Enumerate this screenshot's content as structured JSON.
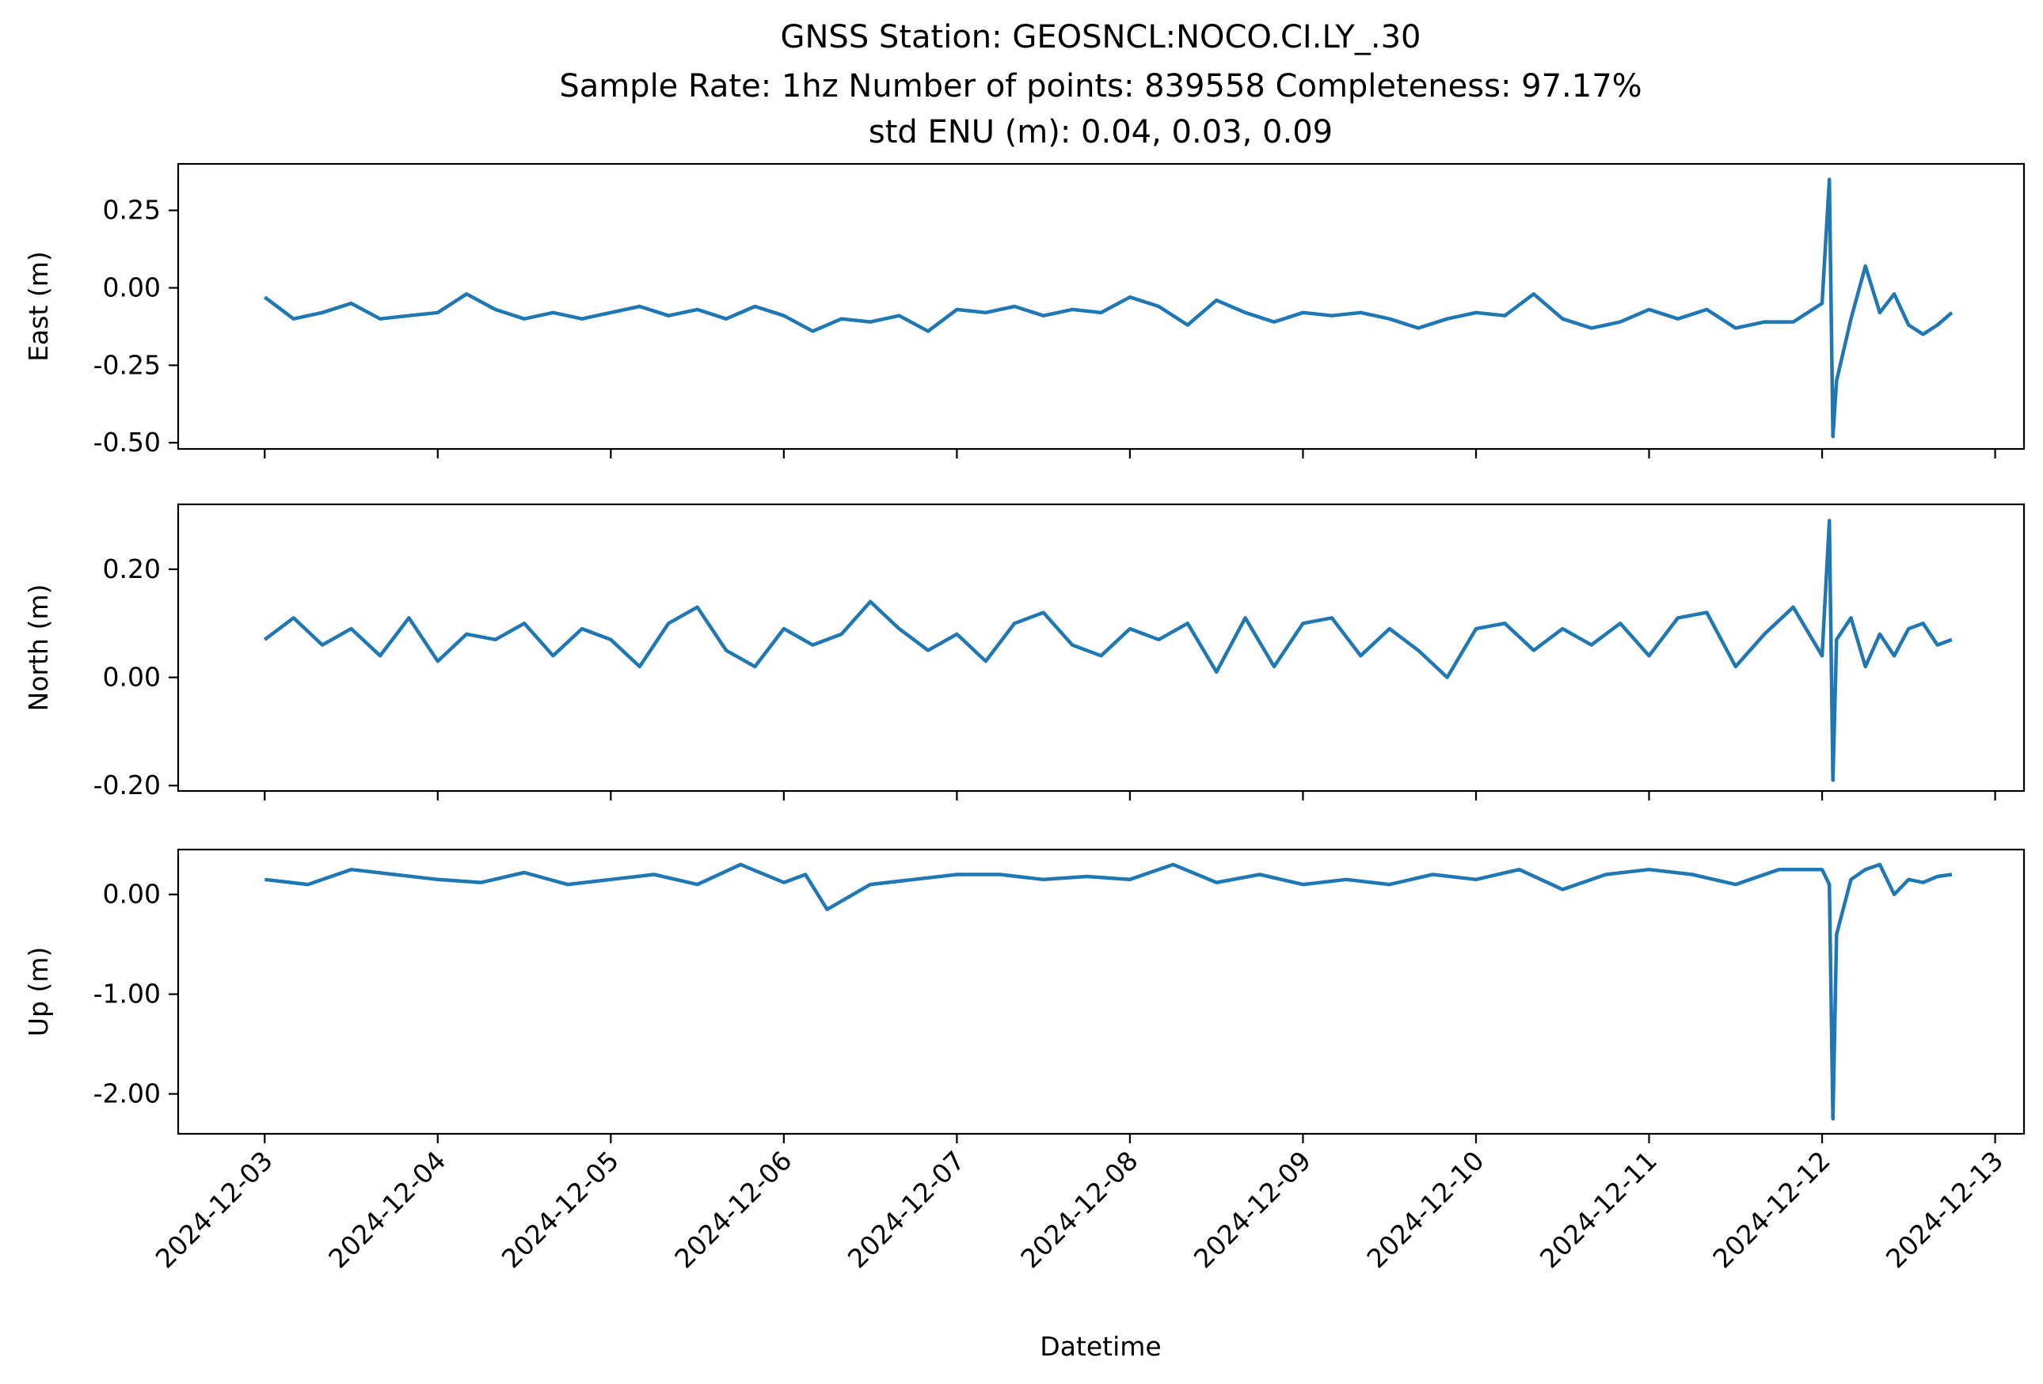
{
  "chart_data": {
    "type": "line",
    "title_lines": [
      "GNSS Station: GEOSNCL:NOCO.CI.LY_.30",
      "Sample Rate: 1hz   Number of points: 839558    Completeness:  97.17%",
      "std ENU (m):  0.04, 0.03, 0.09"
    ],
    "xlabel": "Datetime",
    "x_ticks": [
      "2024-12-03",
      "2024-12-04",
      "2024-12-05",
      "2024-12-06",
      "2024-12-07",
      "2024-12-08",
      "2024-12-09",
      "2024-12-10",
      "2024-12-11",
      "2024-12-12",
      "2024-12-13"
    ],
    "xlim": [
      "2024-12-02T12:00",
      "2024-12-13T04:00"
    ],
    "line_color": "#1f77b4",
    "panels": [
      {
        "ylabel": "East (m)",
        "ylim": [
          -0.52,
          0.4
        ],
        "y_ticks": [
          0.25,
          0.0,
          -0.25,
          -0.5
        ],
        "y_tick_labels": [
          "0.25",
          "0.00",
          "-0.25",
          "-0.50"
        ],
        "series": {
          "x": [
            "2024-12-03T00:00",
            "2024-12-03T04:00",
            "2024-12-03T08:00",
            "2024-12-03T12:00",
            "2024-12-03T16:00",
            "2024-12-03T20:00",
            "2024-12-04T00:00",
            "2024-12-04T04:00",
            "2024-12-04T08:00",
            "2024-12-04T12:00",
            "2024-12-04T16:00",
            "2024-12-04T20:00",
            "2024-12-05T00:00",
            "2024-12-05T04:00",
            "2024-12-05T08:00",
            "2024-12-05T12:00",
            "2024-12-05T16:00",
            "2024-12-05T20:00",
            "2024-12-06T00:00",
            "2024-12-06T04:00",
            "2024-12-06T08:00",
            "2024-12-06T12:00",
            "2024-12-06T16:00",
            "2024-12-06T20:00",
            "2024-12-07T00:00",
            "2024-12-07T04:00",
            "2024-12-07T08:00",
            "2024-12-07T12:00",
            "2024-12-07T16:00",
            "2024-12-07T20:00",
            "2024-12-08T00:00",
            "2024-12-08T04:00",
            "2024-12-08T08:00",
            "2024-12-08T12:00",
            "2024-12-08T16:00",
            "2024-12-08T20:00",
            "2024-12-09T00:00",
            "2024-12-09T04:00",
            "2024-12-09T08:00",
            "2024-12-09T12:00",
            "2024-12-09T16:00",
            "2024-12-09T20:00",
            "2024-12-10T00:00",
            "2024-12-10T04:00",
            "2024-12-10T08:00",
            "2024-12-10T12:00",
            "2024-12-10T16:00",
            "2024-12-10T20:00",
            "2024-12-11T00:00",
            "2024-12-11T04:00",
            "2024-12-11T08:00",
            "2024-12-11T12:00",
            "2024-12-11T16:00",
            "2024-12-11T20:00",
            "2024-12-12T00:00",
            "2024-12-12T01:00",
            "2024-12-12T01:30",
            "2024-12-12T02:00",
            "2024-12-12T04:00",
            "2024-12-12T06:00",
            "2024-12-12T08:00",
            "2024-12-12T10:00",
            "2024-12-12T12:00",
            "2024-12-12T14:00",
            "2024-12-12T16:00",
            "2024-12-12T18:00"
          ],
          "y": [
            -0.03,
            -0.1,
            -0.08,
            -0.05,
            -0.1,
            -0.09,
            -0.08,
            -0.02,
            -0.07,
            -0.1,
            -0.08,
            -0.1,
            -0.08,
            -0.06,
            -0.09,
            -0.07,
            -0.1,
            -0.06,
            -0.09,
            -0.14,
            -0.1,
            -0.11,
            -0.09,
            -0.14,
            -0.07,
            -0.08,
            -0.06,
            -0.09,
            -0.07,
            -0.08,
            -0.03,
            -0.06,
            -0.12,
            -0.04,
            -0.08,
            -0.11,
            -0.08,
            -0.09,
            -0.08,
            -0.1,
            -0.13,
            -0.1,
            -0.08,
            -0.09,
            -0.02,
            -0.1,
            -0.13,
            -0.11,
            -0.07,
            -0.1,
            -0.07,
            -0.13,
            -0.11,
            -0.11,
            -0.05,
            0.35,
            -0.48,
            -0.3,
            -0.1,
            0.07,
            -0.08,
            -0.02,
            -0.12,
            -0.15,
            -0.12,
            -0.08
          ]
        }
      },
      {
        "ylabel": "North (m)",
        "ylim": [
          -0.21,
          0.32
        ],
        "y_ticks": [
          0.2,
          0.0,
          -0.2
        ],
        "y_tick_labels": [
          "0.20",
          "0.00",
          "-0.20"
        ],
        "series": {
          "x": [
            "2024-12-03T00:00",
            "2024-12-03T04:00",
            "2024-12-03T08:00",
            "2024-12-03T12:00",
            "2024-12-03T16:00",
            "2024-12-03T20:00",
            "2024-12-04T00:00",
            "2024-12-04T04:00",
            "2024-12-04T08:00",
            "2024-12-04T12:00",
            "2024-12-04T16:00",
            "2024-12-04T20:00",
            "2024-12-05T00:00",
            "2024-12-05T04:00",
            "2024-12-05T08:00",
            "2024-12-05T12:00",
            "2024-12-05T16:00",
            "2024-12-05T20:00",
            "2024-12-06T00:00",
            "2024-12-06T04:00",
            "2024-12-06T08:00",
            "2024-12-06T12:00",
            "2024-12-06T16:00",
            "2024-12-06T20:00",
            "2024-12-07T00:00",
            "2024-12-07T04:00",
            "2024-12-07T08:00",
            "2024-12-07T12:00",
            "2024-12-07T16:00",
            "2024-12-07T20:00",
            "2024-12-08T00:00",
            "2024-12-08T04:00",
            "2024-12-08T08:00",
            "2024-12-08T12:00",
            "2024-12-08T16:00",
            "2024-12-08T20:00",
            "2024-12-09T00:00",
            "2024-12-09T04:00",
            "2024-12-09T08:00",
            "2024-12-09T12:00",
            "2024-12-09T16:00",
            "2024-12-09T20:00",
            "2024-12-10T00:00",
            "2024-12-10T04:00",
            "2024-12-10T08:00",
            "2024-12-10T12:00",
            "2024-12-10T16:00",
            "2024-12-10T20:00",
            "2024-12-11T00:00",
            "2024-12-11T04:00",
            "2024-12-11T08:00",
            "2024-12-11T12:00",
            "2024-12-11T16:00",
            "2024-12-11T20:00",
            "2024-12-12T00:00",
            "2024-12-12T01:00",
            "2024-12-12T01:30",
            "2024-12-12T02:00",
            "2024-12-12T04:00",
            "2024-12-12T06:00",
            "2024-12-12T08:00",
            "2024-12-12T10:00",
            "2024-12-12T12:00",
            "2024-12-12T14:00",
            "2024-12-12T16:00",
            "2024-12-12T18:00"
          ],
          "y": [
            0.07,
            0.11,
            0.06,
            0.09,
            0.04,
            0.11,
            0.03,
            0.08,
            0.07,
            0.1,
            0.04,
            0.09,
            0.07,
            0.02,
            0.1,
            0.13,
            0.05,
            0.02,
            0.09,
            0.06,
            0.08,
            0.14,
            0.09,
            0.05,
            0.08,
            0.03,
            0.1,
            0.12,
            0.06,
            0.04,
            0.09,
            0.07,
            0.1,
            0.01,
            0.11,
            0.02,
            0.1,
            0.11,
            0.04,
            0.09,
            0.05,
            0.0,
            0.09,
            0.1,
            0.05,
            0.09,
            0.06,
            0.1,
            0.04,
            0.11,
            0.12,
            0.02,
            0.08,
            0.13,
            0.04,
            0.29,
            -0.19,
            0.07,
            0.11,
            0.02,
            0.08,
            0.04,
            0.09,
            0.1,
            0.06,
            0.07
          ]
        }
      },
      {
        "ylabel": "Up (m)",
        "ylim": [
          -2.4,
          0.45
        ],
        "y_ticks": [
          0.0,
          -1.0,
          -2.0
        ],
        "y_tick_labels": [
          "0.00",
          "-1.00",
          "-2.00"
        ],
        "series": {
          "x": [
            "2024-12-03T00:00",
            "2024-12-03T06:00",
            "2024-12-03T12:00",
            "2024-12-03T18:00",
            "2024-12-04T00:00",
            "2024-12-04T06:00",
            "2024-12-04T12:00",
            "2024-12-04T18:00",
            "2024-12-05T00:00",
            "2024-12-05T06:00",
            "2024-12-05T12:00",
            "2024-12-05T18:00",
            "2024-12-06T00:00",
            "2024-12-06T03:00",
            "2024-12-06T06:00",
            "2024-12-06T12:00",
            "2024-12-06T18:00",
            "2024-12-07T00:00",
            "2024-12-07T06:00",
            "2024-12-07T12:00",
            "2024-12-07T18:00",
            "2024-12-08T00:00",
            "2024-12-08T06:00",
            "2024-12-08T12:00",
            "2024-12-08T18:00",
            "2024-12-09T00:00",
            "2024-12-09T06:00",
            "2024-12-09T12:00",
            "2024-12-09T18:00",
            "2024-12-10T00:00",
            "2024-12-10T06:00",
            "2024-12-10T12:00",
            "2024-12-10T18:00",
            "2024-12-11T00:00",
            "2024-12-11T06:00",
            "2024-12-11T12:00",
            "2024-12-11T18:00",
            "2024-12-12T00:00",
            "2024-12-12T01:00",
            "2024-12-12T01:30",
            "2024-12-12T02:00",
            "2024-12-12T04:00",
            "2024-12-12T06:00",
            "2024-12-12T08:00",
            "2024-12-12T10:00",
            "2024-12-12T12:00",
            "2024-12-12T14:00",
            "2024-12-12T16:00",
            "2024-12-12T18:00"
          ],
          "y": [
            0.15,
            0.1,
            0.25,
            0.2,
            0.15,
            0.12,
            0.22,
            0.1,
            0.15,
            0.2,
            0.1,
            0.3,
            0.12,
            0.2,
            -0.15,
            0.1,
            0.15,
            0.2,
            0.2,
            0.15,
            0.18,
            0.15,
            0.3,
            0.12,
            0.2,
            0.1,
            0.15,
            0.1,
            0.2,
            0.15,
            0.25,
            0.05,
            0.2,
            0.25,
            0.2,
            0.1,
            0.25,
            0.25,
            0.1,
            -2.25,
            -0.4,
            0.15,
            0.25,
            0.3,
            0.0,
            0.15,
            0.12,
            0.18,
            0.2
          ]
        }
      }
    ]
  }
}
